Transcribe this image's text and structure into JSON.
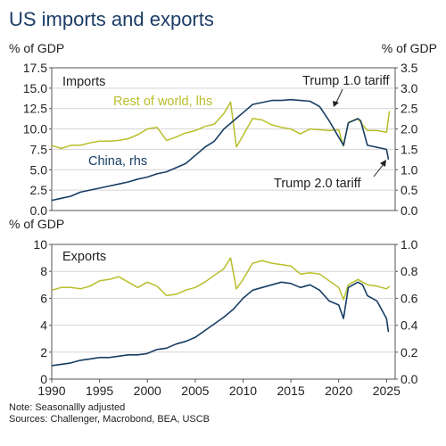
{
  "title": "US imports and exports",
  "note": "Note: Seasonallly adjusted",
  "sources": "Sources: Challenger, Macrobond, BEA, USCB",
  "colors": {
    "china": "#173e64",
    "row": "#b9be2a",
    "title": "#1d3d67"
  },
  "chart_data": [
    {
      "type": "line",
      "title": "Imports",
      "x_range": [
        1990,
        2025.9
      ],
      "ylabel_left": "% of GDP",
      "ylabel_right": "% of GDP",
      "ylim_left": [
        0,
        17.5
      ],
      "ylim_right": [
        0,
        3.5
      ],
      "yticks_left": [
        "0.0",
        "2.5",
        "5.0",
        "7.5",
        "10.0",
        "12.5",
        "15.0",
        "17.5"
      ],
      "yticks_right": [
        "0.0",
        "0.5",
        "1.0",
        "1.5",
        "2.0",
        "2.5",
        "3.0",
        "3.5"
      ],
      "annotations": [
        "Trump 1.0 tariff",
        "Trump 2.0 tariff"
      ],
      "series": [
        {
          "name": "Rest of world, lhs",
          "axis": "left",
          "x": [
            1990,
            1991,
            1992,
            1993,
            1994,
            1995,
            1996,
            1997,
            1998,
            1999,
            2000,
            2001,
            2002,
            2003,
            2004,
            2005,
            2006,
            2007,
            2008,
            2008.7,
            2009.3,
            2010,
            2011,
            2012,
            2013,
            2014,
            2015,
            2016,
            2017,
            2018,
            2019,
            2020,
            2020.5,
            2021,
            2022,
            2022.5,
            2023,
            2024,
            2025,
            2025.3
          ],
          "y": [
            8.0,
            7.6,
            8.0,
            8.0,
            8.3,
            8.5,
            8.5,
            8.6,
            8.8,
            9.3,
            10.0,
            10.2,
            8.6,
            9.0,
            9.5,
            9.8,
            10.3,
            10.6,
            11.9,
            13.3,
            7.8,
            9.2,
            11.3,
            11.1,
            10.5,
            10.2,
            10.0,
            9.4,
            10.0,
            9.9,
            9.8,
            9.9,
            7.9,
            10.8,
            11.3,
            10.5,
            9.8,
            9.8,
            9.6,
            12.2
          ]
        },
        {
          "name": "China, rhs",
          "axis": "right",
          "x": [
            1990,
            1991,
            1992,
            1993,
            1994,
            1995,
            1996,
            1997,
            1998,
            1999,
            2000,
            2001,
            2002,
            2003,
            2004,
            2005,
            2006,
            2007,
            2008,
            2009,
            2010,
            2011,
            2012,
            2013,
            2014,
            2015,
            2016,
            2017,
            2018,
            2019,
            2020,
            2020.5,
            2021,
            2022,
            2022.3,
            2023,
            2024,
            2025,
            2025.2
          ],
          "y": [
            0.25,
            0.3,
            0.35,
            0.45,
            0.5,
            0.55,
            0.6,
            0.65,
            0.7,
            0.77,
            0.82,
            0.9,
            0.95,
            1.05,
            1.15,
            1.35,
            1.55,
            1.7,
            2.0,
            2.2,
            2.4,
            2.6,
            2.65,
            2.7,
            2.7,
            2.72,
            2.7,
            2.68,
            2.55,
            2.2,
            1.8,
            1.6,
            2.15,
            2.25,
            2.2,
            1.6,
            1.55,
            1.5,
            1.25
          ]
        }
      ]
    },
    {
      "type": "line",
      "title": "Exports",
      "x_range": [
        1990,
        2025.9
      ],
      "ylabel_left": "% of GDP",
      "ylim_left": [
        0,
        10
      ],
      "ylim_right": [
        0,
        1.0
      ],
      "yticks_left": [
        "0",
        "2",
        "4",
        "6",
        "8",
        "10"
      ],
      "yticks_right": [
        "0.0",
        "0.2",
        "0.4",
        "0.6",
        "0.8",
        "1.0"
      ],
      "xticks": [
        "1990",
        "1995",
        "2000",
        "2005",
        "2010",
        "2015",
        "2020",
        "2025"
      ],
      "series": [
        {
          "name": "Rest of world",
          "axis": "left",
          "x": [
            1990,
            1991,
            1992,
            1993,
            1994,
            1995,
            1996,
            1997,
            1998,
            1999,
            2000,
            2001,
            2002,
            2003,
            2004,
            2005,
            2006,
            2007,
            2008,
            2008.7,
            2009.3,
            2010,
            2011,
            2012,
            2013,
            2014,
            2015,
            2016,
            2017,
            2018,
            2019,
            2020,
            2020.5,
            2021,
            2022,
            2023,
            2024,
            2025,
            2025.3
          ],
          "y": [
            6.6,
            6.8,
            6.8,
            6.7,
            6.9,
            7.3,
            7.4,
            7.6,
            7.2,
            6.8,
            7.2,
            6.9,
            6.2,
            6.3,
            6.6,
            6.8,
            7.2,
            7.7,
            8.2,
            9.0,
            6.7,
            7.4,
            8.6,
            8.8,
            8.6,
            8.5,
            8.4,
            7.8,
            7.9,
            7.8,
            7.3,
            6.8,
            5.9,
            7.0,
            7.4,
            7.0,
            6.9,
            6.7,
            6.9
          ]
        },
        {
          "name": "China",
          "axis": "right",
          "x": [
            1990,
            1991,
            1992,
            1993,
            1994,
            1995,
            1996,
            1997,
            1998,
            1999,
            2000,
            2001,
            2002,
            2003,
            2004,
            2005,
            2006,
            2007,
            2008,
            2009,
            2010,
            2011,
            2012,
            2013,
            2014,
            2015,
            2016,
            2017,
            2018,
            2019,
            2020,
            2020.5,
            2021,
            2022,
            2022.5,
            2023,
            2024,
            2025,
            2025.2
          ],
          "y": [
            0.1,
            0.11,
            0.12,
            0.14,
            0.15,
            0.16,
            0.16,
            0.17,
            0.18,
            0.18,
            0.19,
            0.22,
            0.23,
            0.26,
            0.28,
            0.31,
            0.36,
            0.41,
            0.46,
            0.52,
            0.6,
            0.66,
            0.68,
            0.7,
            0.72,
            0.71,
            0.68,
            0.7,
            0.66,
            0.58,
            0.55,
            0.45,
            0.68,
            0.72,
            0.7,
            0.62,
            0.58,
            0.45,
            0.35
          ]
        }
      ]
    }
  ]
}
